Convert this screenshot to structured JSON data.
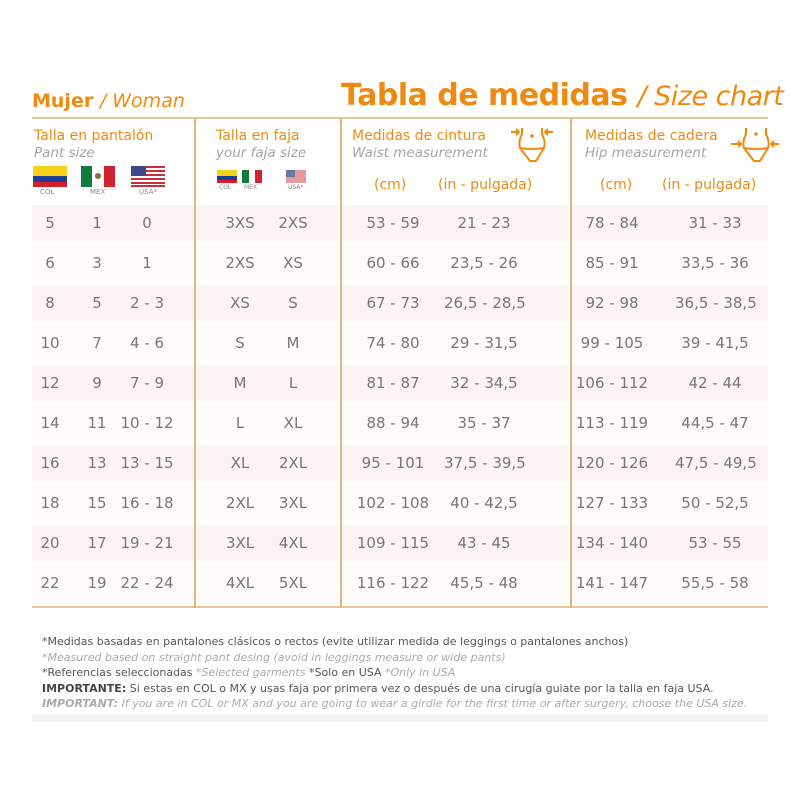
{
  "header": {
    "left_title": "Mujer",
    "left_subtitle": "/ Woman",
    "main_title": "Tabla de medidas",
    "main_subtitle": "/ Size chart"
  },
  "columns": {
    "pant": {
      "title": "Talla en pantalón",
      "subtitle": "Pant size",
      "flags": [
        "COL",
        "MEX",
        "USA*"
      ]
    },
    "faja": {
      "title": "Talla en faja",
      "subtitle": "your faja size",
      "flags": [
        "COL",
        "MEX",
        "USA*"
      ]
    },
    "waist": {
      "title": "Medidas de cintura",
      "subtitle": "Waist measurement",
      "unit_cm": "(cm)",
      "unit_in": "(in - pulgada)",
      "icon": "waist-measure-icon"
    },
    "hip": {
      "title": "Medidas de cadera",
      "subtitle": "Hip measurement",
      "unit_cm": "(cm)",
      "unit_in": "(in - pulgada)",
      "icon": "hip-measure-icon"
    }
  },
  "rows": [
    [
      "5",
      "1",
      "0",
      "3XS",
      "2XS",
      "53 - 59",
      "21 - 23",
      "78 - 84",
      "31 - 33"
    ],
    [
      "6",
      "3",
      "1",
      "2XS",
      "XS",
      "60 - 66",
      "23,5 - 26",
      "85 - 91",
      "33,5 - 36"
    ],
    [
      "8",
      "5",
      "2 - 3",
      "XS",
      "S",
      "67 - 73",
      "26,5 - 28,5",
      "92 - 98",
      "36,5 - 38,5"
    ],
    [
      "10",
      "7",
      "4 - 6",
      "S",
      "M",
      "74 - 80",
      "29 - 31,5",
      "99 - 105",
      "39 - 41,5"
    ],
    [
      "12",
      "9",
      "7 - 9",
      "M",
      "L",
      "81 - 87",
      "32 - 34,5",
      "106 - 112",
      "42 - 44"
    ],
    [
      "14",
      "11",
      "10 - 12",
      "L",
      "XL",
      "88 - 94",
      "35 - 37",
      "113 - 119",
      "44,5 - 47"
    ],
    [
      "16",
      "13",
      "13 - 15",
      "XL",
      "2XL",
      "95 - 101",
      "37,5 - 39,5",
      "120 - 126",
      "47,5 - 49,5"
    ],
    [
      "18",
      "15",
      "16 - 18",
      "2XL",
      "3XL",
      "102 - 108",
      "40 - 42,5",
      "127 - 133",
      "50 - 52,5"
    ],
    [
      "20",
      "17",
      "19 - 21",
      "3XL",
      "4XL",
      "109 - 115",
      "43 - 45",
      "134 - 140",
      "53 - 55"
    ],
    [
      "22",
      "19",
      "22 - 24",
      "4XL",
      "5XL",
      "116 - 122",
      "45,5 - 48",
      "141 - 147",
      "55,5 - 58"
    ]
  ],
  "notes": {
    "line1": "*Medidas basadas en pantalones clásicos o rectos (evite utilizar medida de leggings o pantalones anchos)",
    "line2": "*Measured based on straight pant desing (avoid in leggings measure or wide pants)",
    "line3a": "*Referencias seleccionadas",
    "line3b": "*Selected garments",
    "line3c": "*Solo en USA",
    "line3d": "*Only in USA",
    "important_es_label": "IMPORTANTE:",
    "important_es": " Si estas en COL o MX y usas faja por primera vez o después de una cirugía guiate por la talla en faja USA.",
    "important_en_label": "IMPORTANT:",
    "important_en": " If you are in COL or MX and you are going to wear a girdle for the first time or after surgery, choose the USA size."
  },
  "colors": {
    "accent": "#ef8a10",
    "divider": "#dcb77e",
    "row_band": "#fcf3f6"
  }
}
